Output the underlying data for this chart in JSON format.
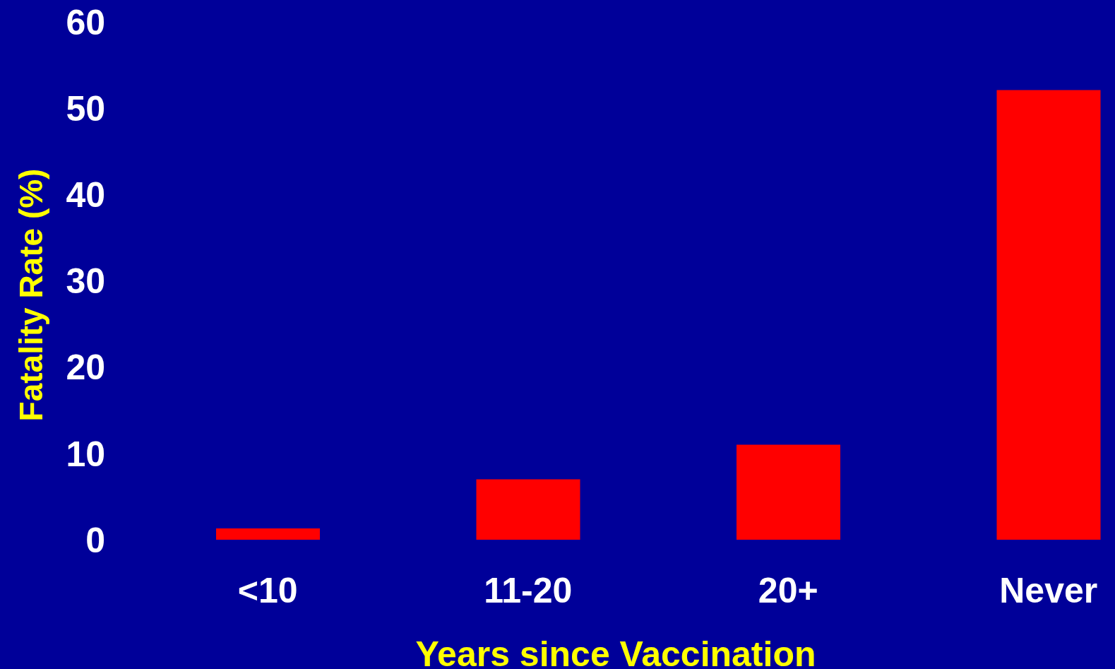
{
  "chart_data": {
    "type": "bar",
    "xlabel": "Years since Vaccination",
    "ylabel": "Fatality Rate (%)",
    "categories": [
      "<10",
      "11-20",
      "20+",
      "Never"
    ],
    "values": [
      1.3,
      7.0,
      11.0,
      52.1
    ],
    "color": "#ff0000",
    "ylim": [
      0,
      60
    ],
    "yticks": [
      0,
      10,
      20,
      30,
      40,
      50,
      60
    ],
    "grid": false
  }
}
